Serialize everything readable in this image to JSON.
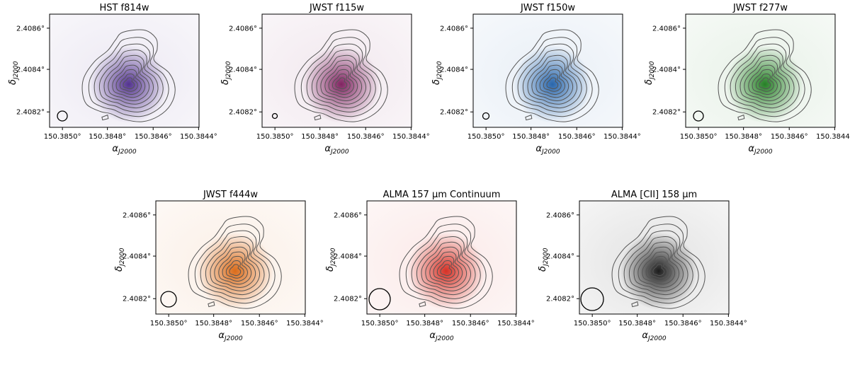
{
  "figure": {
    "y_ticks": [
      "2.4086°",
      "2.4084°",
      "2.4082°"
    ],
    "x_ticks": [
      "150.3850°",
      "150.3848°",
      "150.3846°",
      "150.3844°"
    ],
    "panels": [
      {
        "title": "HST f814w",
        "color": "#4b2a8a"
      },
      {
        "title": "JWST f115w",
        "color": "#7a1a5a"
      },
      {
        "title": "JWST f150w",
        "color": "#1f5fa8"
      },
      {
        "title": "JWST f277w",
        "color": "#1c7a1c"
      },
      {
        "title": "JWST f444w",
        "color": "#d9650f"
      },
      {
        "title": "ALMA 157 μm Continuum",
        "color": "#d4281c"
      },
      {
        "title": "ALMA [CII] 158 μm",
        "color": "#111111"
      }
    ]
  }
}
